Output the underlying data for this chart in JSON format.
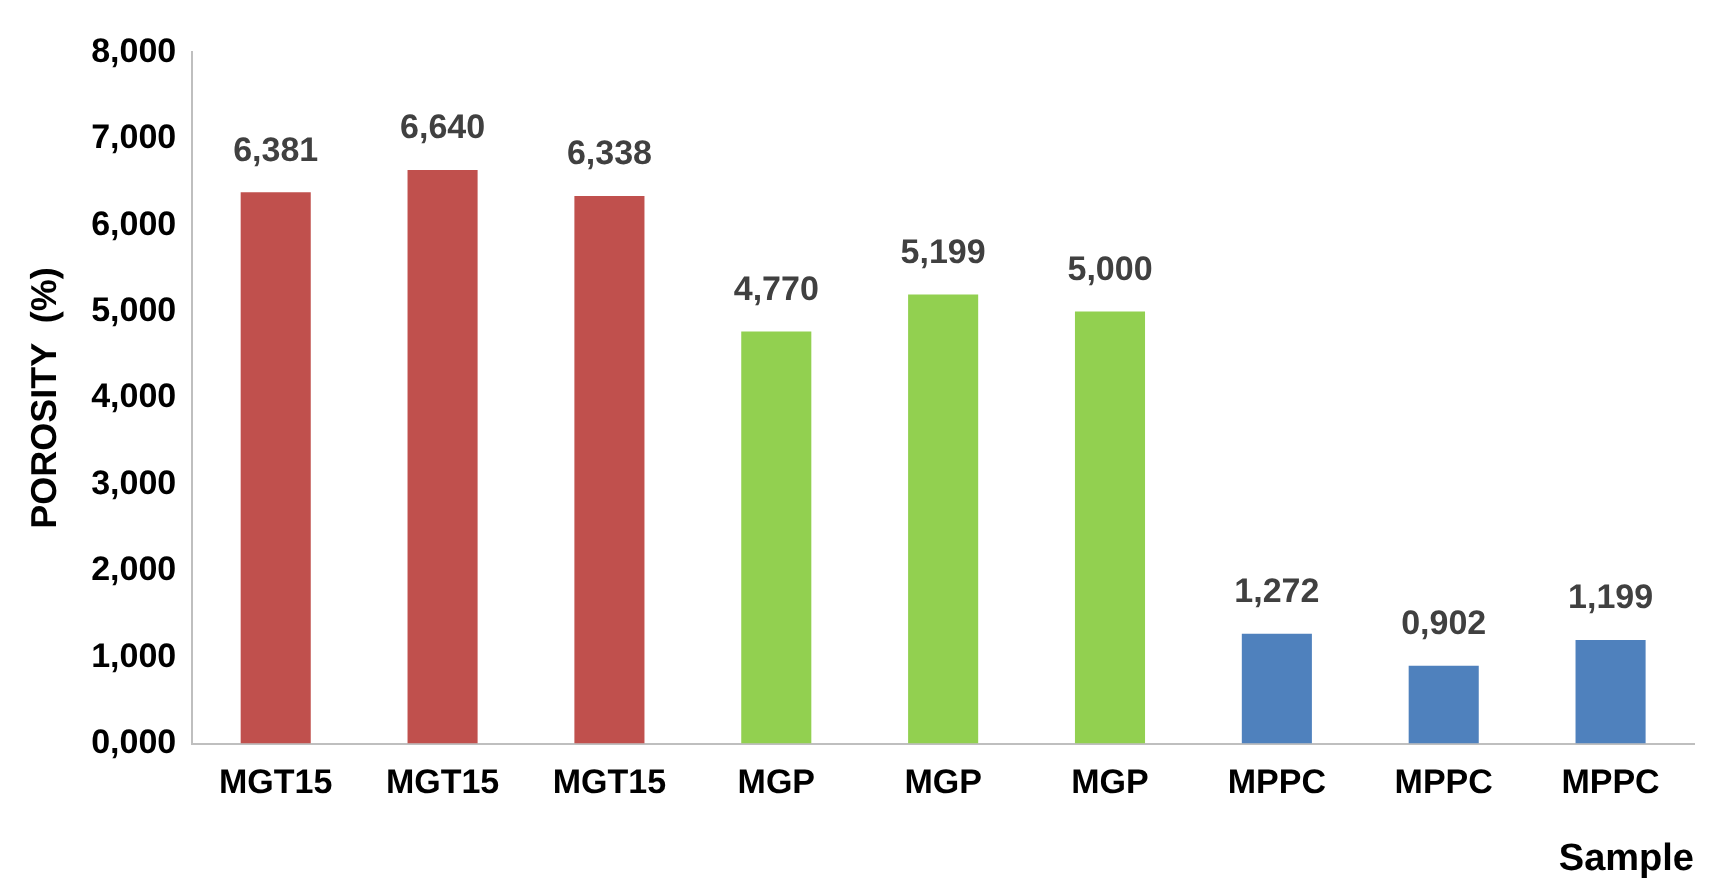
{
  "chart_data": {
    "type": "bar",
    "xlabel": "Sample",
    "ylabel": "POROSITY  (%)",
    "categories": [
      "MGT15",
      "MGT15",
      "MGT15",
      "MGP",
      "MGP",
      "MGP",
      "MPPC",
      "MPPC",
      "MPPC"
    ],
    "values": [
      6.381,
      6.64,
      6.338,
      4.77,
      5.199,
      5.0,
      1.272,
      0.902,
      1.199
    ],
    "value_labels": [
      "6,381",
      "6,640",
      "6,338",
      "4,770",
      "5,199",
      "5,000",
      "1,272",
      "0,902",
      "1,199"
    ],
    "colors": [
      "#c0504d",
      "#c0504d",
      "#c0504d",
      "#92d050",
      "#92d050",
      "#92d050",
      "#4f81bd",
      "#4f81bd",
      "#4f81bd"
    ],
    "ylim": [
      0,
      8
    ],
    "yticks": [
      {
        "value": 0,
        "label": "0,000"
      },
      {
        "value": 1,
        "label": "1,000"
      },
      {
        "value": 2,
        "label": "2,000"
      },
      {
        "value": 3,
        "label": "3,000"
      },
      {
        "value": 4,
        "label": "4,000"
      },
      {
        "value": 5,
        "label": "5,000"
      },
      {
        "value": 6,
        "label": "6,000"
      },
      {
        "value": 7,
        "label": "7,000"
      },
      {
        "value": 8,
        "label": "8,000"
      }
    ],
    "grid": false,
    "legend": false
  }
}
